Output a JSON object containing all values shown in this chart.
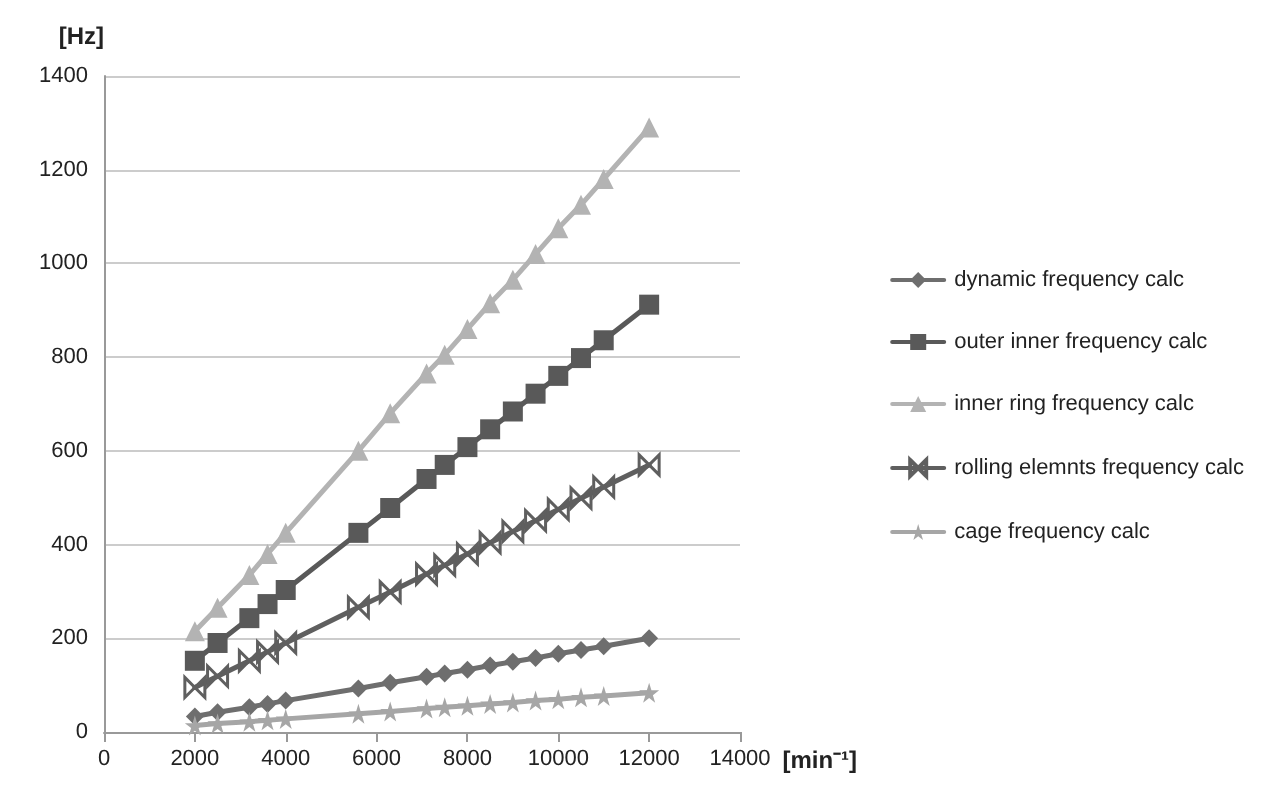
{
  "chart_data": {
    "type": "line",
    "xlabel": "[min⁻¹]",
    "ylabel": "[Hz]",
    "x": [
      2000,
      2500,
      3200,
      3600,
      4000,
      5600,
      6300,
      7100,
      7500,
      8000,
      8500,
      9000,
      9500,
      10000,
      10500,
      11000,
      12000
    ],
    "series": [
      {
        "name": "dynamic frequency calc",
        "color": "#6e6e6e",
        "marker": "diamond",
        "values": [
          33,
          42,
          53,
          60,
          67,
          93,
          105,
          118,
          125,
          133,
          142,
          150,
          158,
          167,
          175,
          183,
          200
        ]
      },
      {
        "name": "outer inner frequency calc",
        "color": "#595959",
        "marker": "square",
        "values": [
          152,
          190,
          243,
          273,
          303,
          425,
          478,
          540,
          570,
          608,
          646,
          684,
          722,
          760,
          798,
          836,
          912
        ]
      },
      {
        "name": "inner ring frequency calc",
        "color": "#b3b3b3",
        "marker": "triangle",
        "values": [
          215,
          265,
          335,
          380,
          425,
          600,
          680,
          765,
          805,
          860,
          915,
          965,
          1020,
          1075,
          1125,
          1180,
          1290
        ]
      },
      {
        "name": "rolling elemnts frequency calc",
        "color": "#5f5f5f",
        "marker": "cross",
        "values": [
          95,
          119,
          152,
          171,
          190,
          266,
          299,
          337,
          356,
          380,
          404,
          428,
          451,
          475,
          499,
          523,
          570
        ]
      },
      {
        "name": "cage frequency calc",
        "color": "#a6a6a6",
        "marker": "star",
        "values": [
          14,
          18,
          22,
          25,
          28,
          39,
          44,
          50,
          53,
          56,
          60,
          63,
          67,
          70,
          74,
          77,
          84
        ]
      }
    ],
    "xlim": [
      0,
      14000
    ],
    "xticks": [
      0,
      2000,
      4000,
      6000,
      8000,
      10000,
      12000,
      14000
    ],
    "ylim": [
      0,
      1400
    ],
    "yticks": [
      0,
      200,
      400,
      600,
      800,
      1000,
      1200,
      1400
    ],
    "grid": "y",
    "legend": "right",
    "line_style": "solid"
  }
}
